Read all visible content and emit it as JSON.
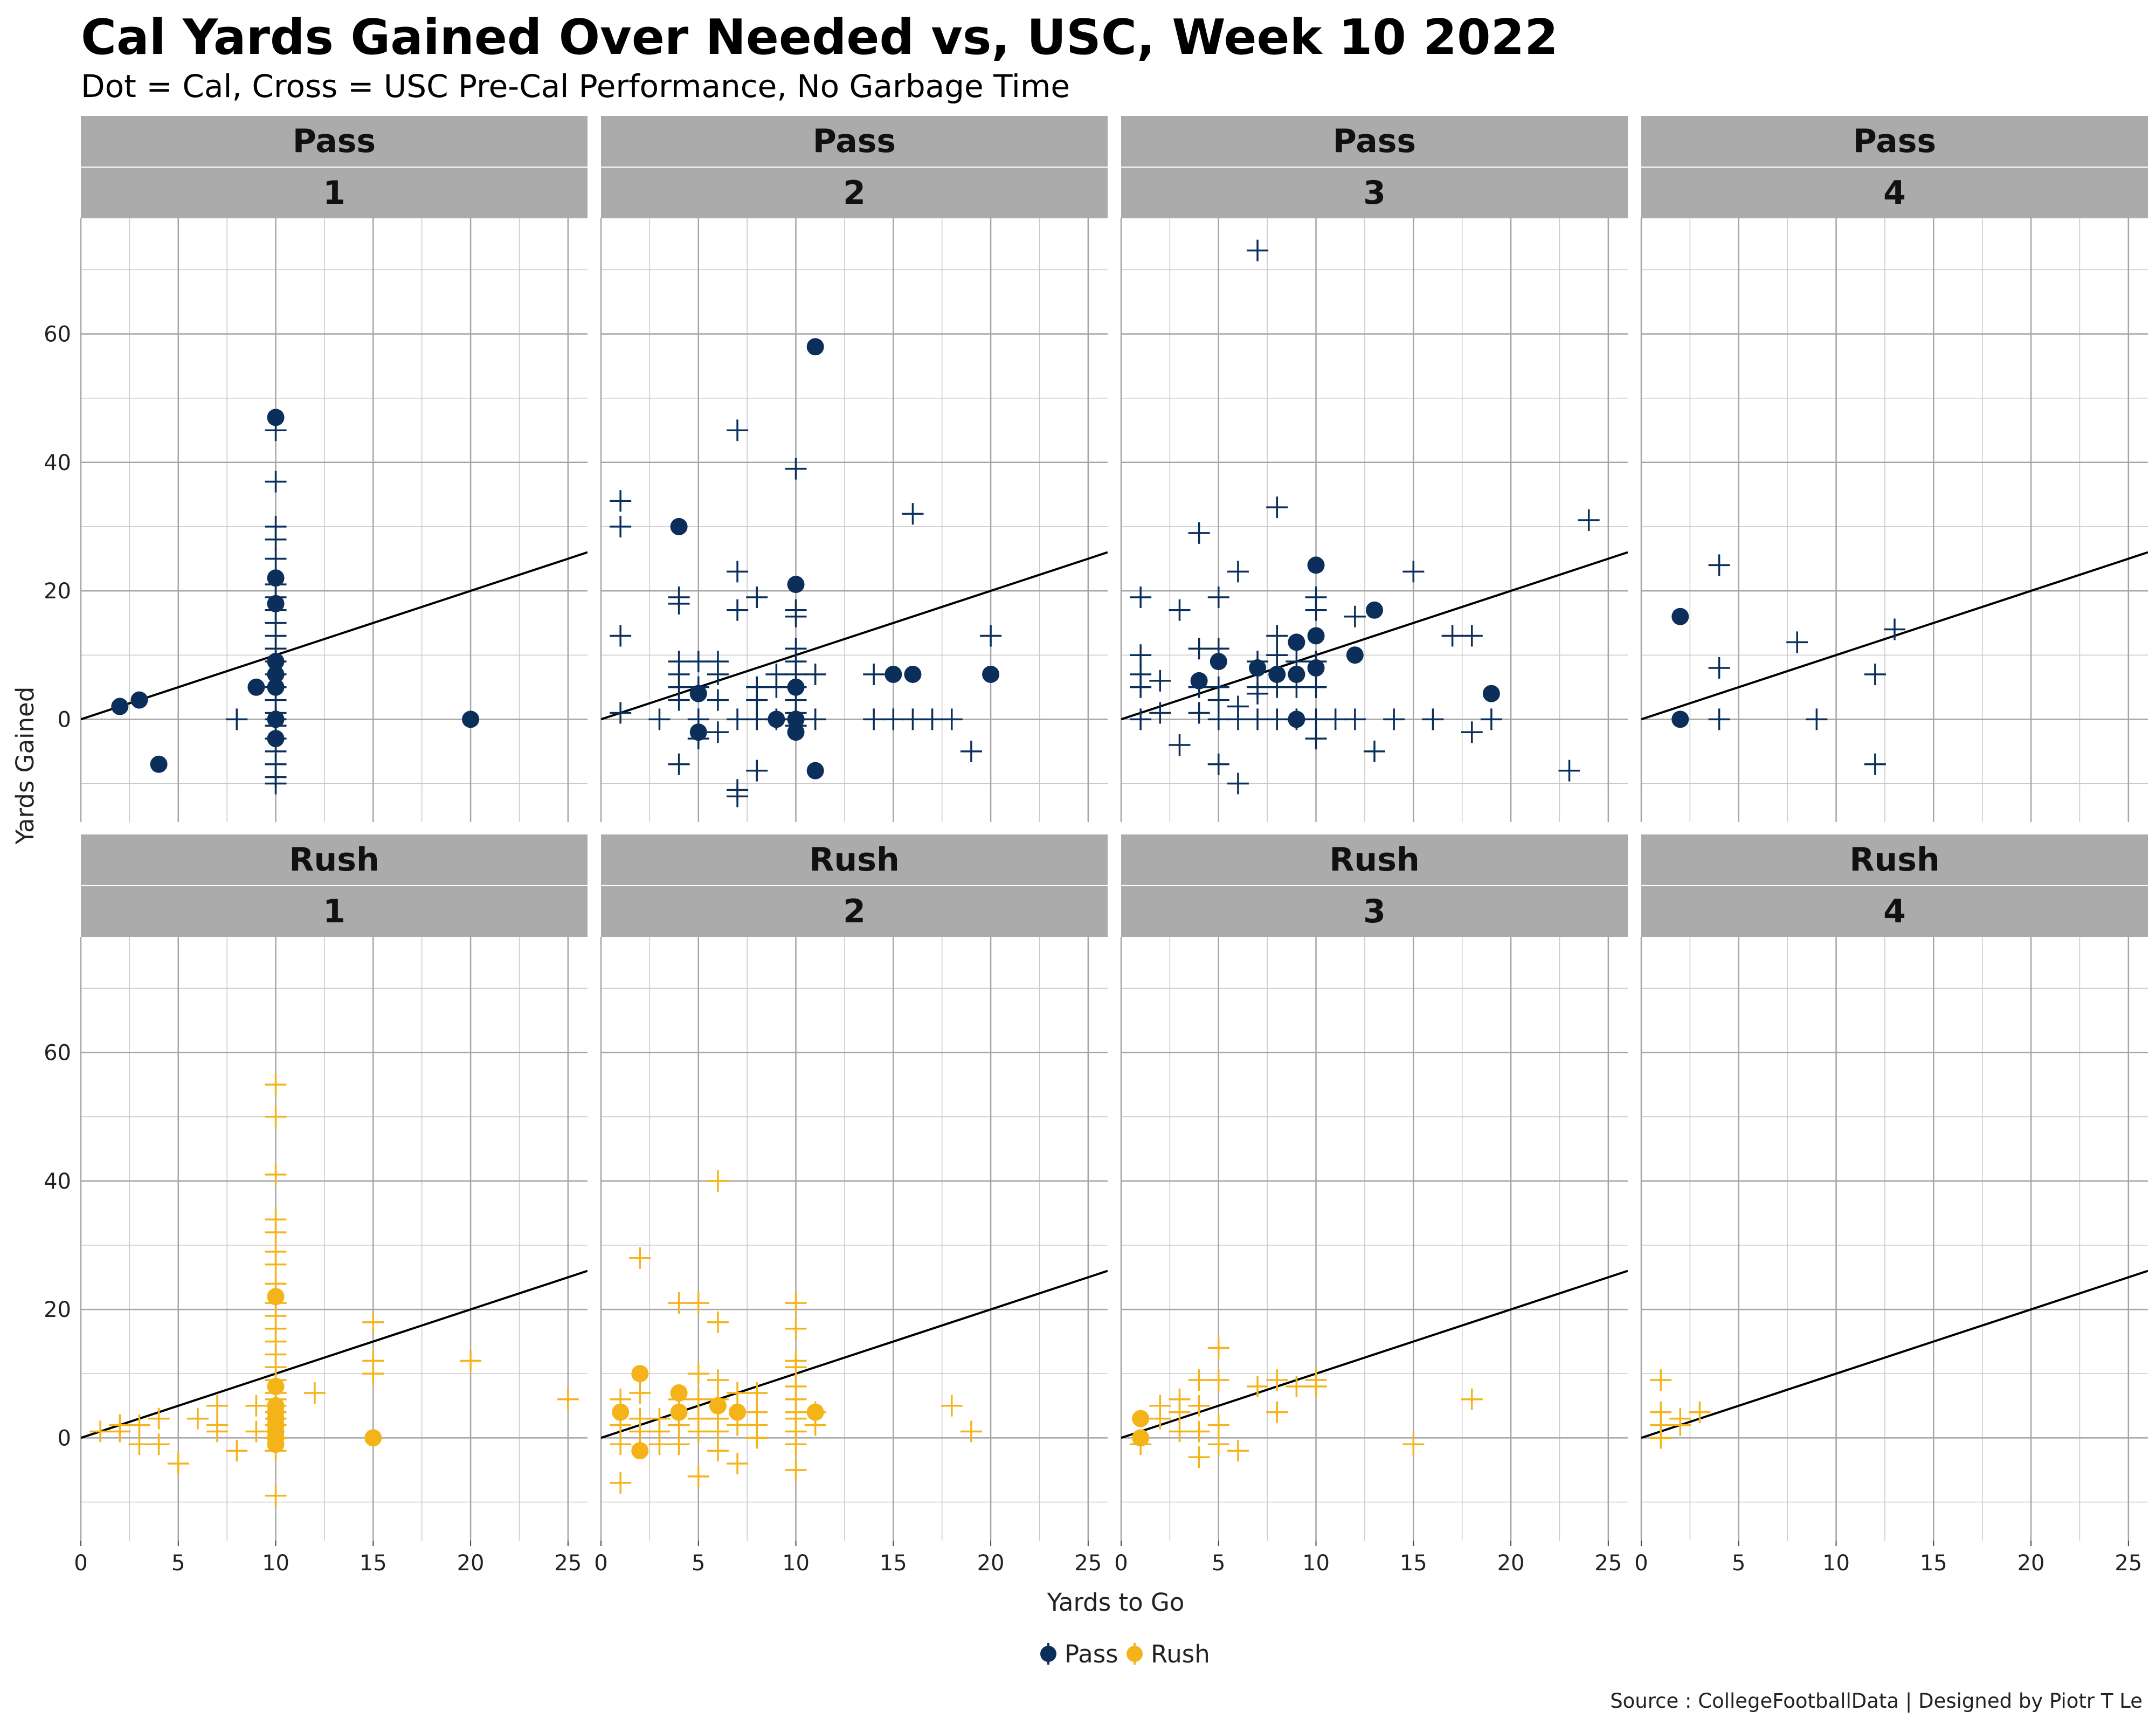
{
  "chart_data": {
    "type": "scatter",
    "title": "Cal Yards Gained Over Needed vs, USC, Week 10 2022",
    "subtitle": "Dot = Cal, Cross = USC Pre-Cal Performance, No Garbage Time",
    "xlabel": "Yards to Go",
    "ylabel": "Yards Gained",
    "caption": "Source : CollegeFootballData | Designed by Piotr T Le",
    "xlim": [
      0,
      26
    ],
    "ylim": [
      -16,
      78
    ],
    "x_ticks": [
      0,
      5,
      10,
      15,
      20,
      25
    ],
    "y_ticks": [
      0,
      20,
      40,
      60
    ],
    "grid": true,
    "reference_line": "y = x",
    "legend": {
      "placement": "bottom",
      "entries": [
        {
          "name": "Pass",
          "color": "#0b2f5a"
        },
        {
          "name": "Rush",
          "color": "#f5b31a"
        }
      ]
    },
    "colors": {
      "Pass": "#0b2f5a",
      "Rush": "#f5b31a"
    },
    "panels": [
      {
        "play_type": "Pass",
        "down": "1",
        "cal": [
          [
            2,
            2
          ],
          [
            3,
            3
          ],
          [
            4,
            -7
          ],
          [
            9,
            5
          ],
          [
            10,
            47
          ],
          [
            10,
            22
          ],
          [
            10,
            18
          ],
          [
            10,
            9
          ],
          [
            10,
            7
          ],
          [
            10,
            5
          ],
          [
            10,
            0
          ],
          [
            10,
            -3
          ],
          [
            20,
            0
          ]
        ],
        "usc": [
          [
            8,
            0
          ],
          [
            10,
            45
          ],
          [
            10,
            37
          ],
          [
            10,
            30
          ],
          [
            10,
            28
          ],
          [
            10,
            25
          ],
          [
            10,
            21
          ],
          [
            10,
            19
          ],
          [
            10,
            17
          ],
          [
            10,
            15
          ],
          [
            10,
            13
          ],
          [
            10,
            11
          ],
          [
            10,
            9
          ],
          [
            10,
            7
          ],
          [
            10,
            5
          ],
          [
            10,
            3
          ],
          [
            10,
            1
          ],
          [
            10,
            0
          ],
          [
            10,
            -1
          ],
          [
            10,
            -3
          ],
          [
            10,
            -5
          ],
          [
            10,
            -7
          ],
          [
            10,
            -9
          ],
          [
            10,
            -10
          ]
        ]
      },
      {
        "play_type": "Pass",
        "down": "2",
        "cal": [
          [
            4,
            30
          ],
          [
            5,
            4
          ],
          [
            5,
            -2
          ],
          [
            9,
            0
          ],
          [
            10,
            21
          ],
          [
            10,
            5
          ],
          [
            10,
            0
          ],
          [
            10,
            -2
          ],
          [
            11,
            58
          ],
          [
            11,
            -8
          ],
          [
            15,
            7
          ],
          [
            16,
            7
          ],
          [
            20,
            7
          ]
        ],
        "usc": [
          [
            1,
            34
          ],
          [
            1,
            30
          ],
          [
            1,
            13
          ],
          [
            1,
            1
          ],
          [
            3,
            0
          ],
          [
            4,
            19
          ],
          [
            4,
            18
          ],
          [
            4,
            9
          ],
          [
            4,
            7
          ],
          [
            4,
            5
          ],
          [
            4,
            3
          ],
          [
            4,
            -7
          ],
          [
            5,
            9
          ],
          [
            5,
            5
          ],
          [
            5,
            0
          ],
          [
            5,
            -3
          ],
          [
            6,
            9
          ],
          [
            6,
            7
          ],
          [
            6,
            3
          ],
          [
            6,
            -2
          ],
          [
            7,
            45
          ],
          [
            7,
            23
          ],
          [
            7,
            17
          ],
          [
            7,
            0
          ],
          [
            7,
            -11
          ],
          [
            7,
            -12
          ],
          [
            8,
            19
          ],
          [
            8,
            5
          ],
          [
            8,
            3
          ],
          [
            8,
            0
          ],
          [
            8,
            -8
          ],
          [
            9,
            7
          ],
          [
            9,
            5
          ],
          [
            9,
            0
          ],
          [
            10,
            39
          ],
          [
            10,
            17
          ],
          [
            10,
            16
          ],
          [
            10,
            11
          ],
          [
            10,
            9
          ],
          [
            10,
            7
          ],
          [
            10,
            5
          ],
          [
            10,
            3
          ],
          [
            10,
            1
          ],
          [
            10,
            0
          ],
          [
            10,
            -1
          ],
          [
            11,
            7
          ],
          [
            11,
            0
          ],
          [
            14,
            7
          ],
          [
            14,
            0
          ],
          [
            15,
            0
          ],
          [
            16,
            32
          ],
          [
            16,
            0
          ],
          [
            17,
            0
          ],
          [
            18,
            0
          ],
          [
            19,
            -5
          ],
          [
            20,
            13
          ]
        ]
      },
      {
        "play_type": "Pass",
        "down": "3",
        "cal": [
          [
            4,
            6
          ],
          [
            5,
            9
          ],
          [
            7,
            8
          ],
          [
            8,
            7
          ],
          [
            9,
            12
          ],
          [
            9,
            7
          ],
          [
            9,
            0
          ],
          [
            10,
            24
          ],
          [
            10,
            13
          ],
          [
            10,
            8
          ],
          [
            12,
            10
          ],
          [
            13,
            17
          ],
          [
            19,
            4
          ]
        ],
        "usc": [
          [
            1,
            19
          ],
          [
            1,
            10
          ],
          [
            1,
            7
          ],
          [
            1,
            5
          ],
          [
            1,
            0
          ],
          [
            2,
            6
          ],
          [
            2,
            1
          ],
          [
            3,
            17
          ],
          [
            3,
            -4
          ],
          [
            4,
            29
          ],
          [
            4,
            11
          ],
          [
            4,
            5
          ],
          [
            4,
            1
          ],
          [
            5,
            19
          ],
          [
            5,
            11
          ],
          [
            5,
            5
          ],
          [
            5,
            3
          ],
          [
            5,
            0
          ],
          [
            5,
            -7
          ],
          [
            6,
            23
          ],
          [
            6,
            2
          ],
          [
            6,
            0
          ],
          [
            6,
            -10
          ],
          [
            7,
            73
          ],
          [
            7,
            9
          ],
          [
            7,
            5
          ],
          [
            7,
            4
          ],
          [
            7,
            0
          ],
          [
            8,
            33
          ],
          [
            8,
            13
          ],
          [
            8,
            10
          ],
          [
            8,
            5
          ],
          [
            8,
            0
          ],
          [
            9,
            9
          ],
          [
            9,
            5
          ],
          [
            9,
            0
          ],
          [
            10,
            19
          ],
          [
            10,
            17
          ],
          [
            10,
            9
          ],
          [
            10,
            5
          ],
          [
            10,
            0
          ],
          [
            10,
            -3
          ],
          [
            11,
            0
          ],
          [
            12,
            16
          ],
          [
            12,
            0
          ],
          [
            13,
            -5
          ],
          [
            14,
            0
          ],
          [
            15,
            23
          ],
          [
            16,
            0
          ],
          [
            17,
            13
          ],
          [
            18,
            13
          ],
          [
            18,
            -2
          ],
          [
            19,
            0
          ],
          [
            23,
            -8
          ],
          [
            24,
            31
          ]
        ]
      },
      {
        "play_type": "Pass",
        "down": "4",
        "cal": [
          [
            2,
            16
          ],
          [
            2,
            0
          ]
        ],
        "usc": [
          [
            4,
            24
          ],
          [
            4,
            8
          ],
          [
            4,
            0
          ],
          [
            8,
            12
          ],
          [
            9,
            0
          ],
          [
            12,
            7
          ],
          [
            12,
            -7
          ],
          [
            13,
            14
          ]
        ]
      },
      {
        "play_type": "Rush",
        "down": "1",
        "cal": [
          [
            10,
            22
          ],
          [
            10,
            8
          ],
          [
            10,
            5
          ],
          [
            10,
            4
          ],
          [
            10,
            3
          ],
          [
            10,
            2
          ],
          [
            10,
            1
          ],
          [
            10,
            0
          ],
          [
            10,
            -1
          ],
          [
            15,
            0
          ]
        ],
        "usc": [
          [
            1,
            1
          ],
          [
            2,
            2
          ],
          [
            2,
            1
          ],
          [
            3,
            2
          ],
          [
            3,
            -1
          ],
          [
            4,
            3
          ],
          [
            4,
            -1
          ],
          [
            5,
            -4
          ],
          [
            6,
            3
          ],
          [
            7,
            5
          ],
          [
            7,
            2
          ],
          [
            7,
            1
          ],
          [
            8,
            -2
          ],
          [
            9,
            5
          ],
          [
            9,
            1
          ],
          [
            10,
            55
          ],
          [
            10,
            50
          ],
          [
            10,
            41
          ],
          [
            10,
            34
          ],
          [
            10,
            32
          ],
          [
            10,
            29
          ],
          [
            10,
            27
          ],
          [
            10,
            24
          ],
          [
            10,
            21
          ],
          [
            10,
            19
          ],
          [
            10,
            17
          ],
          [
            10,
            15
          ],
          [
            10,
            13
          ],
          [
            10,
            11
          ],
          [
            10,
            9
          ],
          [
            10,
            7
          ],
          [
            10,
            6
          ],
          [
            10,
            5
          ],
          [
            10,
            4
          ],
          [
            10,
            3
          ],
          [
            10,
            2
          ],
          [
            10,
            0
          ],
          [
            10,
            -2
          ],
          [
            10,
            -9
          ],
          [
            12,
            7
          ],
          [
            15,
            18
          ],
          [
            15,
            12
          ],
          [
            15,
            10
          ],
          [
            20,
            12
          ],
          [
            25,
            6
          ]
        ]
      },
      {
        "play_type": "Rush",
        "down": "2",
        "cal": [
          [
            1,
            4
          ],
          [
            2,
            10
          ],
          [
            2,
            -2
          ],
          [
            4,
            7
          ],
          [
            4,
            4
          ],
          [
            6,
            5
          ],
          [
            7,
            4
          ],
          [
            11,
            4
          ]
        ],
        "usc": [
          [
            1,
            6
          ],
          [
            1,
            2
          ],
          [
            1,
            -1
          ],
          [
            1,
            -7
          ],
          [
            2,
            28
          ],
          [
            2,
            7
          ],
          [
            2,
            3
          ],
          [
            2,
            1
          ],
          [
            3,
            3
          ],
          [
            3,
            1
          ],
          [
            3,
            -1
          ],
          [
            4,
            21
          ],
          [
            4,
            6
          ],
          [
            4,
            2
          ],
          [
            4,
            -1
          ],
          [
            5,
            21
          ],
          [
            5,
            10
          ],
          [
            5,
            6
          ],
          [
            5,
            3
          ],
          [
            5,
            1
          ],
          [
            5,
            -6
          ],
          [
            6,
            40
          ],
          [
            6,
            18
          ],
          [
            6,
            9
          ],
          [
            6,
            6
          ],
          [
            6,
            3
          ],
          [
            6,
            1
          ],
          [
            6,
            -2
          ],
          [
            7,
            7
          ],
          [
            7,
            2
          ],
          [
            7,
            -4
          ],
          [
            8,
            7
          ],
          [
            8,
            4
          ],
          [
            8,
            2
          ],
          [
            8,
            0
          ],
          [
            10,
            21
          ],
          [
            10,
            17
          ],
          [
            10,
            12
          ],
          [
            10,
            11
          ],
          [
            10,
            8
          ],
          [
            10,
            6
          ],
          [
            10,
            4
          ],
          [
            10,
            3
          ],
          [
            10,
            1
          ],
          [
            10,
            -1
          ],
          [
            10,
            -5
          ],
          [
            11,
            4
          ],
          [
            11,
            2
          ],
          [
            18,
            5
          ],
          [
            19,
            1
          ]
        ]
      },
      {
        "play_type": "Rush",
        "down": "3",
        "cal": [
          [
            1,
            3
          ],
          [
            1,
            0
          ]
        ],
        "usc": [
          [
            1,
            -1
          ],
          [
            2,
            5
          ],
          [
            2,
            3
          ],
          [
            3,
            6
          ],
          [
            3,
            4
          ],
          [
            3,
            1
          ],
          [
            4,
            9
          ],
          [
            4,
            5
          ],
          [
            4,
            1
          ],
          [
            4,
            -3
          ],
          [
            5,
            14
          ],
          [
            5,
            9
          ],
          [
            5,
            2
          ],
          [
            5,
            -1
          ],
          [
            6,
            -2
          ],
          [
            7,
            8
          ],
          [
            8,
            9
          ],
          [
            8,
            4
          ],
          [
            9,
            8
          ],
          [
            10,
            9
          ],
          [
            10,
            8
          ],
          [
            15,
            -1
          ],
          [
            18,
            6
          ]
        ]
      },
      {
        "play_type": "Rush",
        "down": "4",
        "cal": [],
        "usc": [
          [
            1,
            9
          ],
          [
            1,
            4
          ],
          [
            1,
            2
          ],
          [
            1,
            0
          ],
          [
            2,
            3
          ],
          [
            2,
            2
          ],
          [
            3,
            4
          ]
        ]
      }
    ]
  }
}
